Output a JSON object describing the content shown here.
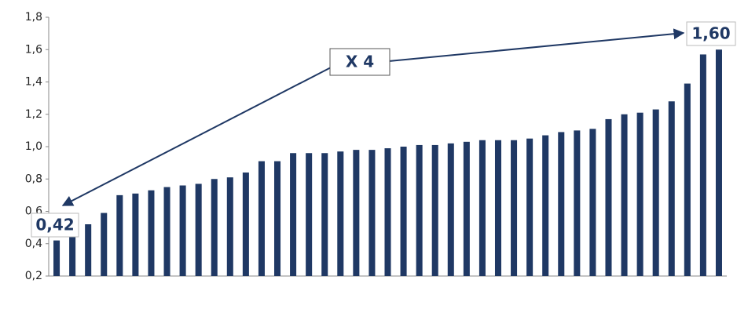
{
  "chart_data": {
    "type": "bar",
    "categories": [
      null,
      null,
      null,
      null,
      null,
      null,
      null,
      null,
      null,
      null,
      null,
      null,
      null,
      null,
      null,
      null,
      null,
      null,
      null,
      null,
      null,
      null,
      null,
      null,
      null,
      null,
      null,
      null,
      null,
      null,
      null,
      null,
      null,
      null,
      null,
      null,
      null,
      null,
      null,
      null,
      null,
      null,
      null
    ],
    "values": [
      0.42,
      0.45,
      0.52,
      0.59,
      0.7,
      0.71,
      0.73,
      0.75,
      0.76,
      0.77,
      0.8,
      0.81,
      0.84,
      0.91,
      0.91,
      0.96,
      0.96,
      0.96,
      0.97,
      0.98,
      0.98,
      0.99,
      1.0,
      1.01,
      1.01,
      1.02,
      1.03,
      1.04,
      1.04,
      1.04,
      1.05,
      1.07,
      1.09,
      1.1,
      1.11,
      1.17,
      1.2,
      1.21,
      1.23,
      1.28,
      1.39,
      1.57,
      1.6
    ],
    "color": "#1f3864",
    "ylim": [
      0.2,
      1.8
    ],
    "yticks": [
      {
        "value": 0.2,
        "label": "0,2"
      },
      {
        "value": 0.4,
        "label": "0,4"
      },
      {
        "value": 0.6,
        "label": "0,6"
      },
      {
        "value": 0.8,
        "label": "0,8"
      },
      {
        "value": 1.0,
        "label": "1,0"
      },
      {
        "value": 1.2,
        "label": "1,2"
      },
      {
        "value": 1.4,
        "label": "1,4"
      },
      {
        "value": 1.6,
        "label": "1,6"
      },
      {
        "value": 1.8,
        "label": "1,8"
      }
    ],
    "annotations": [
      "X 4",
      "0,42",
      "1,60"
    ],
    "grid": false
  }
}
